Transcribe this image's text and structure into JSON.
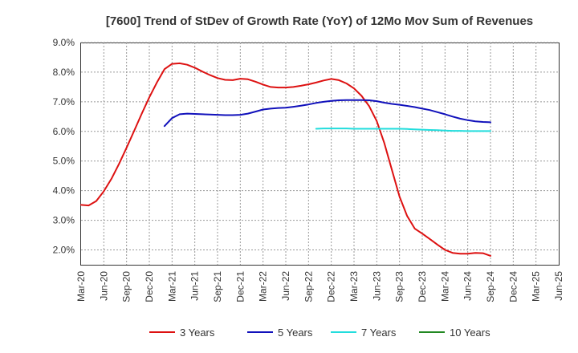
{
  "chart_data": {
    "type": "line",
    "title": "[7600]  Trend of StDev of Growth Rate (YoY) of 12Mo Mov Sum of Revenues",
    "xlabel": "",
    "ylabel": "",
    "x_ticks": [
      "Mar-20",
      "Jun-20",
      "Sep-20",
      "Dec-20",
      "Mar-21",
      "Jun-21",
      "Sep-21",
      "Dec-21",
      "Mar-22",
      "Jun-22",
      "Sep-22",
      "Dec-22",
      "Mar-23",
      "Jun-23",
      "Sep-23",
      "Dec-23",
      "Mar-24",
      "Jun-24",
      "Sep-24",
      "Dec-24",
      "Mar-25",
      "Jun-25"
    ],
    "y_ticks": [
      "2.0%",
      "3.0%",
      "4.0%",
      "5.0%",
      "6.0%",
      "7.0%",
      "8.0%",
      "9.0%"
    ],
    "y_tick_values": [
      2,
      3,
      4,
      5,
      6,
      7,
      8,
      9
    ],
    "ylim": [
      1.5,
      9.0
    ],
    "grid": true,
    "legend_position": "bottom",
    "series": [
      {
        "name": "3 Years",
        "color": "#dd1111",
        "values": [
          3.52,
          3.5,
          3.65,
          3.98,
          4.4,
          4.9,
          5.45,
          6.02,
          6.6,
          7.15,
          7.65,
          8.1,
          8.28,
          8.3,
          8.25,
          8.15,
          8.02,
          7.9,
          7.8,
          7.74,
          7.73,
          7.78,
          7.76,
          7.68,
          7.58,
          7.5,
          7.48,
          7.48,
          7.5,
          7.54,
          7.59,
          7.65,
          7.72,
          7.77,
          7.73,
          7.62,
          7.45,
          7.2,
          6.85,
          6.35,
          5.6,
          4.7,
          3.8,
          3.15,
          2.72,
          2.55,
          2.37,
          2.18,
          2.0,
          1.9,
          1.87,
          1.87,
          1.9,
          1.89,
          1.8
        ]
      },
      {
        "name": "5 Years",
        "color": "#1111bb",
        "values": [
          null,
          null,
          null,
          null,
          null,
          null,
          null,
          null,
          null,
          null,
          null,
          6.18,
          6.45,
          6.58,
          6.6,
          6.59,
          6.58,
          6.57,
          6.56,
          6.55,
          6.55,
          6.56,
          6.6,
          6.67,
          6.74,
          6.77,
          6.79,
          6.8,
          6.83,
          6.87,
          6.91,
          6.96,
          7.0,
          7.03,
          7.05,
          7.06,
          7.06,
          7.06,
          7.05,
          7.02,
          6.97,
          6.93,
          6.9,
          6.86,
          6.82,
          6.77,
          6.72,
          6.65,
          6.58,
          6.5,
          6.43,
          6.38,
          6.34,
          6.32,
          6.31
        ]
      },
      {
        "name": "7 Years",
        "color": "#22dddd",
        "values": [
          null,
          null,
          null,
          null,
          null,
          null,
          null,
          null,
          null,
          null,
          null,
          null,
          null,
          null,
          null,
          null,
          null,
          null,
          null,
          null,
          null,
          null,
          null,
          null,
          null,
          null,
          null,
          null,
          null,
          null,
          null,
          6.09,
          6.1,
          6.1,
          6.1,
          6.1,
          6.09,
          6.09,
          6.09,
          6.09,
          6.09,
          6.09,
          6.09,
          6.08,
          6.07,
          6.06,
          6.05,
          6.04,
          6.03,
          6.02,
          6.02,
          6.01,
          6.01,
          6.01,
          6.01
        ]
      },
      {
        "name": "10 Years",
        "color": "#228822",
        "values": []
      }
    ]
  }
}
